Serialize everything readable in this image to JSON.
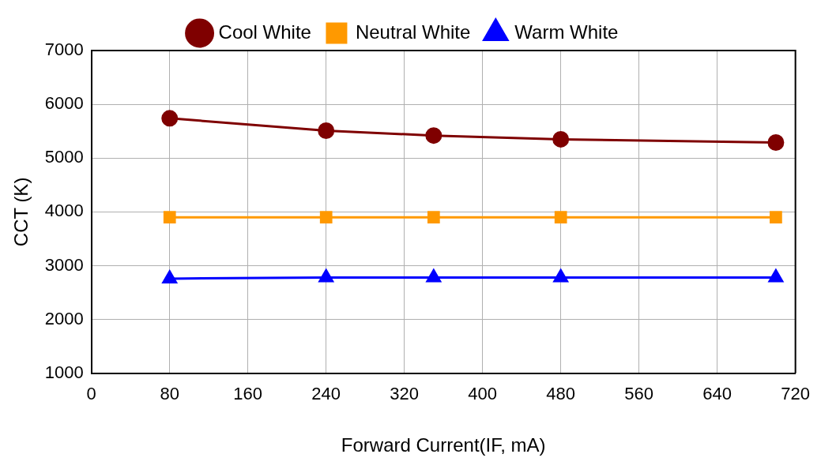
{
  "chart_data": {
    "type": "line",
    "xlabel": "Forward Current(IF, mA)",
    "ylabel": "CCT (K)",
    "x": [
      80,
      240,
      350,
      480,
      700
    ],
    "series": [
      {
        "name": "Cool White",
        "color": "#7f0000",
        "marker": "circle",
        "values": [
          5740,
          5510,
          5420,
          5350,
          5290
        ]
      },
      {
        "name": "Neutral White",
        "color": "#ff9900",
        "marker": "square",
        "values": [
          3900,
          3900,
          3900,
          3900,
          3900
        ]
      },
      {
        "name": "Warm White",
        "color": "#0000ff",
        "marker": "triangle",
        "values": [
          2760,
          2780,
          2780,
          2780,
          2780
        ]
      }
    ],
    "xlim": [
      0,
      720
    ],
    "xticks": [
      0,
      80,
      160,
      240,
      320,
      400,
      480,
      560,
      640,
      720
    ],
    "ylim": [
      1000,
      7000
    ],
    "yticks": [
      1000,
      2000,
      3000,
      4000,
      5000,
      6000,
      7000
    ],
    "grid": true,
    "legend": "top",
    "line_style": "solid"
  }
}
